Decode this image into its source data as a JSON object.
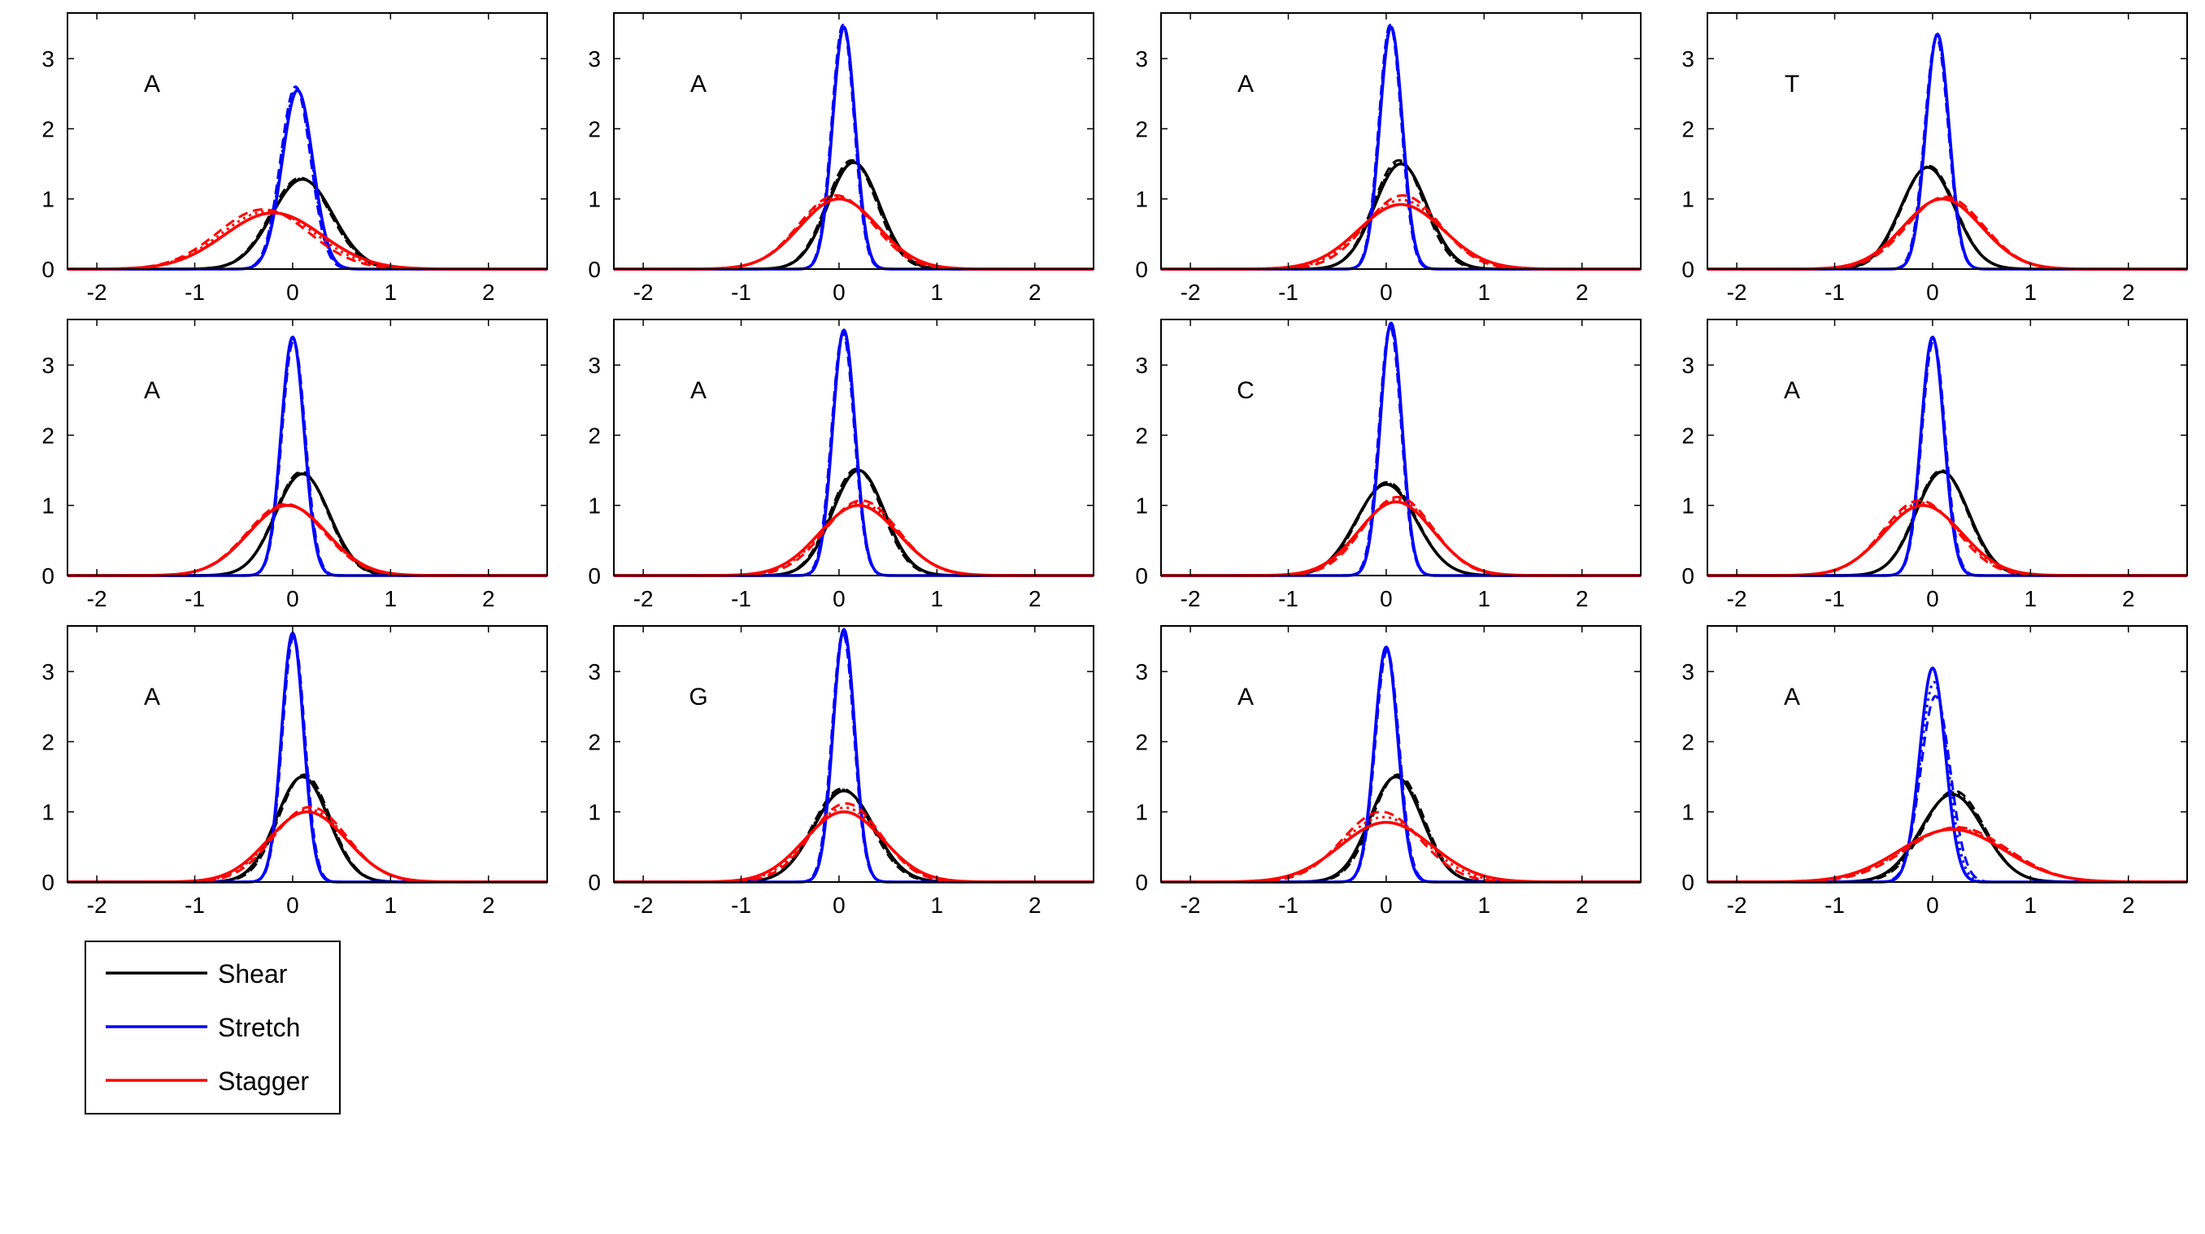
{
  "chart_data": {
    "type": "line",
    "layout": "3x4 small multiples",
    "xlim": [
      -2.3,
      2.6
    ],
    "ylim": [
      0,
      3.65
    ],
    "x_ticks": [
      -2,
      -1,
      0,
      1,
      2
    ],
    "x_tick_labels": [
      "-2",
      "-1",
      "0",
      "1",
      "2"
    ],
    "y_ticks": [
      0,
      1,
      2,
      3
    ],
    "y_tick_labels": [
      "0",
      "1",
      "2",
      "3"
    ],
    "grid": false,
    "legend": {
      "placement": "below-left",
      "entries": [
        {
          "label": "Shear",
          "color": "#000000"
        },
        {
          "label": "Stretch",
          "color": "#0000ff"
        },
        {
          "label": "Stagger",
          "color": "#ff0000"
        }
      ]
    },
    "curve_model": "gaussian density; each series shown as solid line with dashed/dotted overlays",
    "panels": [
      {
        "label": "A",
        "series": [
          {
            "name": "Shear",
            "peak": 1.28,
            "mean": 0.1,
            "alt_peak": 1.3,
            "alt_mean": 0.08
          },
          {
            "name": "Stretch",
            "peak": 2.55,
            "mean": 0.05,
            "alt_peak": 2.6,
            "alt_mean": 0.03
          },
          {
            "name": "Stagger",
            "peak": 0.8,
            "mean": -0.2,
            "alt_peak": 0.85,
            "alt_mean": -0.3
          }
        ]
      },
      {
        "label": "A",
        "series": [
          {
            "name": "Shear",
            "peak": 1.52,
            "mean": 0.15,
            "alt_peak": 1.55,
            "alt_mean": 0.13
          },
          {
            "name": "Stretch",
            "peak": 3.45,
            "mean": 0.05,
            "alt_peak": 3.48,
            "alt_mean": 0.04
          },
          {
            "name": "Stagger",
            "peak": 1.0,
            "mean": 0.0,
            "alt_peak": 1.05,
            "alt_mean": -0.03
          }
        ]
      },
      {
        "label": "A",
        "series": [
          {
            "name": "Shear",
            "peak": 1.5,
            "mean": 0.15,
            "alt_peak": 1.55,
            "alt_mean": 0.13
          },
          {
            "name": "Stretch",
            "peak": 3.45,
            "mean": 0.05,
            "alt_peak": 3.48,
            "alt_mean": 0.04
          },
          {
            "name": "Stagger",
            "peak": 0.92,
            "mean": 0.15,
            "alt_peak": 1.05,
            "alt_mean": 0.17
          }
        ]
      },
      {
        "label": "T",
        "series": [
          {
            "name": "Shear",
            "peak": 1.45,
            "mean": -0.05,
            "alt_peak": 1.47,
            "alt_mean": -0.04
          },
          {
            "name": "Stretch",
            "peak": 3.35,
            "mean": 0.05,
            "alt_peak": 3.3,
            "alt_mean": 0.04
          },
          {
            "name": "Stagger",
            "peak": 1.0,
            "mean": 0.1,
            "alt_peak": 1.03,
            "alt_mean": 0.13
          }
        ]
      },
      {
        "label": "A",
        "series": [
          {
            "name": "Shear",
            "peak": 1.45,
            "mean": 0.1,
            "alt_peak": 1.48,
            "alt_mean": 0.09
          },
          {
            "name": "Stretch",
            "peak": 3.4,
            "mean": 0.0,
            "alt_peak": 3.35,
            "alt_mean": 0.01
          },
          {
            "name": "Stagger",
            "peak": 1.0,
            "mean": -0.05,
            "alt_peak": 1.02,
            "alt_mean": -0.07
          }
        ]
      },
      {
        "label": "A",
        "series": [
          {
            "name": "Shear",
            "peak": 1.5,
            "mean": 0.2,
            "alt_peak": 1.52,
            "alt_mean": 0.18
          },
          {
            "name": "Stretch",
            "peak": 3.5,
            "mean": 0.05,
            "alt_peak": 3.45,
            "alt_mean": 0.04
          },
          {
            "name": "Stagger",
            "peak": 1.0,
            "mean": 0.2,
            "alt_peak": 1.07,
            "alt_mean": 0.23
          }
        ]
      },
      {
        "label": "C",
        "series": [
          {
            "name": "Shear",
            "peak": 1.3,
            "mean": 0.0,
            "alt_peak": 1.33,
            "alt_mean": 0.01
          },
          {
            "name": "Stretch",
            "peak": 3.6,
            "mean": 0.05,
            "alt_peak": 3.55,
            "alt_mean": 0.04
          },
          {
            "name": "Stagger",
            "peak": 1.05,
            "mean": 0.1,
            "alt_peak": 1.12,
            "alt_mean": 0.12
          }
        ]
      },
      {
        "label": "A",
        "series": [
          {
            "name": "Shear",
            "peak": 1.48,
            "mean": 0.1,
            "alt_peak": 1.5,
            "alt_mean": 0.09
          },
          {
            "name": "Stretch",
            "peak": 3.4,
            "mean": 0.0,
            "alt_peak": 3.35,
            "alt_mean": 0.01
          },
          {
            "name": "Stagger",
            "peak": 1.0,
            "mean": -0.1,
            "alt_peak": 1.07,
            "alt_mean": -0.13
          }
        ]
      },
      {
        "label": "A",
        "series": [
          {
            "name": "Shear",
            "peak": 1.5,
            "mean": 0.1,
            "alt_peak": 1.53,
            "alt_mean": 0.12
          },
          {
            "name": "Stretch",
            "peak": 3.55,
            "mean": 0.0,
            "alt_peak": 3.5,
            "alt_mean": 0.01
          },
          {
            "name": "Stagger",
            "peak": 1.0,
            "mean": 0.15,
            "alt_peak": 1.07,
            "alt_mean": 0.18
          }
        ]
      },
      {
        "label": "G",
        "series": [
          {
            "name": "Shear",
            "peak": 1.3,
            "mean": 0.05,
            "alt_peak": 1.33,
            "alt_mean": 0.03
          },
          {
            "name": "Stretch",
            "peak": 3.6,
            "mean": 0.05,
            "alt_peak": 3.55,
            "alt_mean": 0.04
          },
          {
            "name": "Stagger",
            "peak": 1.0,
            "mean": 0.05,
            "alt_peak": 1.12,
            "alt_mean": 0.07
          }
        ]
      },
      {
        "label": "A",
        "series": [
          {
            "name": "Shear",
            "peak": 1.5,
            "mean": 0.1,
            "alt_peak": 1.53,
            "alt_mean": 0.12
          },
          {
            "name": "Stretch",
            "peak": 3.35,
            "mean": 0.0,
            "alt_peak": 3.3,
            "alt_mean": 0.01
          },
          {
            "name": "Stagger",
            "peak": 0.85,
            "mean": 0.0,
            "alt_peak": 1.0,
            "alt_mean": -0.05
          }
        ]
      },
      {
        "label": "A",
        "series": [
          {
            "name": "Shear",
            "peak": 1.25,
            "mean": 0.2,
            "alt_peak": 1.3,
            "alt_mean": 0.22
          },
          {
            "name": "Stretch",
            "peak": 3.05,
            "mean": 0.0,
            "alt_peak": 2.65,
            "alt_mean": 0.03
          },
          {
            "name": "Stagger",
            "peak": 0.75,
            "mean": 0.2,
            "alt_peak": 0.78,
            "alt_mean": 0.25
          }
        ]
      }
    ]
  }
}
